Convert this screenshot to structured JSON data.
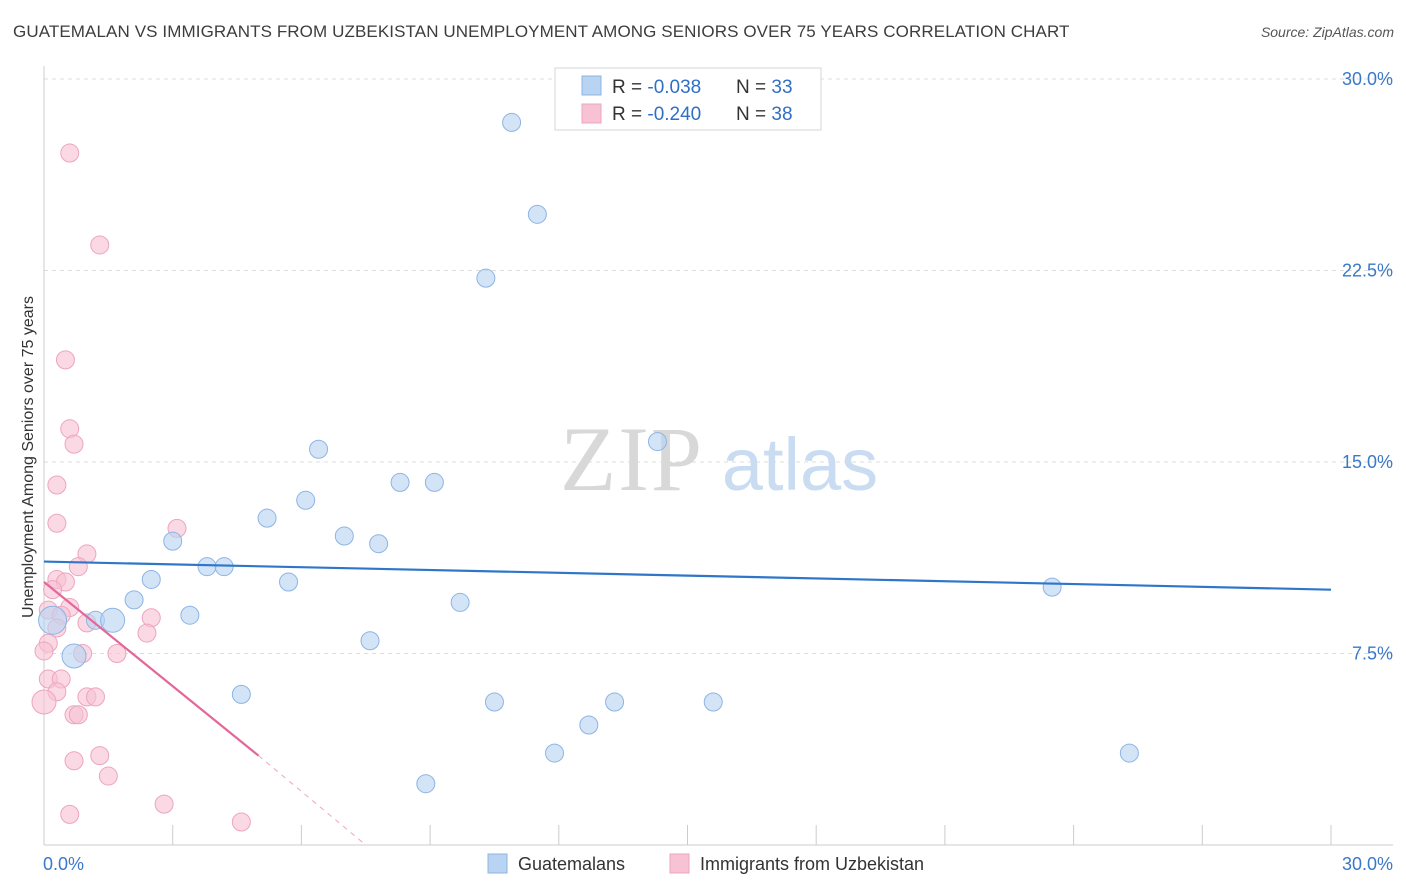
{
  "title": "GUATEMALAN VS IMMIGRANTS FROM UZBEKISTAN UNEMPLOYMENT AMONG SENIORS OVER 75 YEARS CORRELATION CHART",
  "source": "Source: ZipAtlas.com",
  "watermark": {
    "zip": "ZIP",
    "atlas": "atlas"
  },
  "colors": {
    "blue_fill": "#b9d3f2",
    "blue_stroke": "#8cb4e4",
    "blue_line": "#2f76c9",
    "pink_fill": "#f7c2d3",
    "pink_stroke": "#eda5bd",
    "pink_line": "#e4679a",
    "axis_text": "#3a78c8",
    "grid": "#dddddd"
  },
  "legend": {
    "rows": [
      {
        "r_label": "R = ",
        "r_value": "-0.038",
        "n_label": "N = ",
        "n_value": "33",
        "series": "blue"
      },
      {
        "r_label": "R = ",
        "r_value": "-0.240",
        "n_label": "N = ",
        "n_value": "38",
        "series": "pink"
      }
    ]
  },
  "bottom_legend": [
    "Guatemalans",
    "Immigrants from Uzbekistan"
  ],
  "chart_data": {
    "type": "scatter",
    "title": "GUATEMALAN VS IMMIGRANTS FROM UZBEKISTAN UNEMPLOYMENT AMONG SENIORS OVER 75 YEARS CORRELATION CHART",
    "xlabel": "",
    "ylabel": "Unemployment Among Seniors over 75 years",
    "xlim": [
      0,
      30
    ],
    "ylim": [
      0,
      30
    ],
    "x_tick_labels": [
      {
        "value": 0,
        "label": "0.0%"
      },
      {
        "value": 30,
        "label": "30.0%"
      }
    ],
    "y_tick_labels": [
      {
        "value": 7.5,
        "label": "7.5%"
      },
      {
        "value": 15,
        "label": "15.0%"
      },
      {
        "value": 22.5,
        "label": "22.5%"
      },
      {
        "value": 30,
        "label": "30.0%"
      }
    ],
    "grid": true,
    "series": [
      {
        "name": "Guatemalans",
        "color": "blue",
        "points": [
          {
            "x": 10.9,
            "y": 28.3
          },
          {
            "x": 11.5,
            "y": 24.7
          },
          {
            "x": 10.3,
            "y": 22.2
          },
          {
            "x": 14.3,
            "y": 15.8
          },
          {
            "x": 6.4,
            "y": 15.5
          },
          {
            "x": 8.3,
            "y": 14.2
          },
          {
            "x": 9.1,
            "y": 14.2
          },
          {
            "x": 6.1,
            "y": 13.5
          },
          {
            "x": 5.2,
            "y": 12.8
          },
          {
            "x": 7.0,
            "y": 12.1
          },
          {
            "x": 3.0,
            "y": 11.9
          },
          {
            "x": 7.8,
            "y": 11.8
          },
          {
            "x": 3.8,
            "y": 10.9
          },
          {
            "x": 4.2,
            "y": 10.9
          },
          {
            "x": 2.5,
            "y": 10.4
          },
          {
            "x": 5.7,
            "y": 10.3
          },
          {
            "x": 23.5,
            "y": 10.1
          },
          {
            "x": 2.1,
            "y": 9.6
          },
          {
            "x": 9.7,
            "y": 9.5
          },
          {
            "x": 3.4,
            "y": 9.0
          },
          {
            "x": 0.2,
            "y": 8.8,
            "size": "large"
          },
          {
            "x": 1.2,
            "y": 8.8
          },
          {
            "x": 1.6,
            "y": 8.8,
            "size": "medium"
          },
          {
            "x": 7.6,
            "y": 8.0
          },
          {
            "x": 0.7,
            "y": 7.4,
            "size": "medium"
          },
          {
            "x": 4.6,
            "y": 5.9
          },
          {
            "x": 10.5,
            "y": 5.6
          },
          {
            "x": 13.3,
            "y": 5.6
          },
          {
            "x": 15.6,
            "y": 5.6
          },
          {
            "x": 12.7,
            "y": 4.7
          },
          {
            "x": 11.9,
            "y": 3.6
          },
          {
            "x": 25.3,
            "y": 3.6
          },
          {
            "x": 8.9,
            "y": 2.4
          }
        ],
        "trendline": {
          "x0": 0,
          "y0": 11.1,
          "x1": 30,
          "y1": 10.0
        }
      },
      {
        "name": "Immigrants from Uzbekistan",
        "color": "pink",
        "points": [
          {
            "x": 0.6,
            "y": 27.1
          },
          {
            "x": 1.3,
            "y": 23.5
          },
          {
            "x": 0.5,
            "y": 19.0
          },
          {
            "x": 0.6,
            "y": 16.3
          },
          {
            "x": 0.7,
            "y": 15.7
          },
          {
            "x": 0.3,
            "y": 14.1
          },
          {
            "x": 0.3,
            "y": 12.6
          },
          {
            "x": 3.1,
            "y": 12.4
          },
          {
            "x": 1.0,
            "y": 11.4
          },
          {
            "x": 0.8,
            "y": 10.9
          },
          {
            "x": 0.3,
            "y": 10.4
          },
          {
            "x": 0.5,
            "y": 10.3
          },
          {
            "x": 0.2,
            "y": 10.0
          },
          {
            "x": 0.6,
            "y": 9.3
          },
          {
            "x": 0.1,
            "y": 9.2
          },
          {
            "x": 0.4,
            "y": 9.0
          },
          {
            "x": 2.5,
            "y": 8.9
          },
          {
            "x": 1.0,
            "y": 8.7
          },
          {
            "x": 0.3,
            "y": 8.5
          },
          {
            "x": 2.4,
            "y": 8.3
          },
          {
            "x": 0.1,
            "y": 7.9
          },
          {
            "x": 0.0,
            "y": 7.6
          },
          {
            "x": 0.9,
            "y": 7.5
          },
          {
            "x": 1.7,
            "y": 7.5
          },
          {
            "x": 0.1,
            "y": 6.5
          },
          {
            "x": 0.4,
            "y": 6.5
          },
          {
            "x": 0.3,
            "y": 6.0
          },
          {
            "x": 1.0,
            "y": 5.8
          },
          {
            "x": 1.2,
            "y": 5.8
          },
          {
            "x": 0.0,
            "y": 5.6,
            "size": "medium"
          },
          {
            "x": 0.7,
            "y": 5.1
          },
          {
            "x": 0.8,
            "y": 5.1
          },
          {
            "x": 1.3,
            "y": 3.5
          },
          {
            "x": 0.7,
            "y": 3.3
          },
          {
            "x": 1.5,
            "y": 2.7
          },
          {
            "x": 2.8,
            "y": 1.6
          },
          {
            "x": 0.6,
            "y": 1.2
          },
          {
            "x": 4.6,
            "y": 0.9
          }
        ],
        "trendline": {
          "x0": 0,
          "y0": 10.3,
          "x1": 5.0,
          "y1": 3.5
        },
        "trendline_dashed": {
          "x0": 5.0,
          "y0": 3.5,
          "x1": 7.5,
          "y1": 0
        }
      }
    ]
  }
}
